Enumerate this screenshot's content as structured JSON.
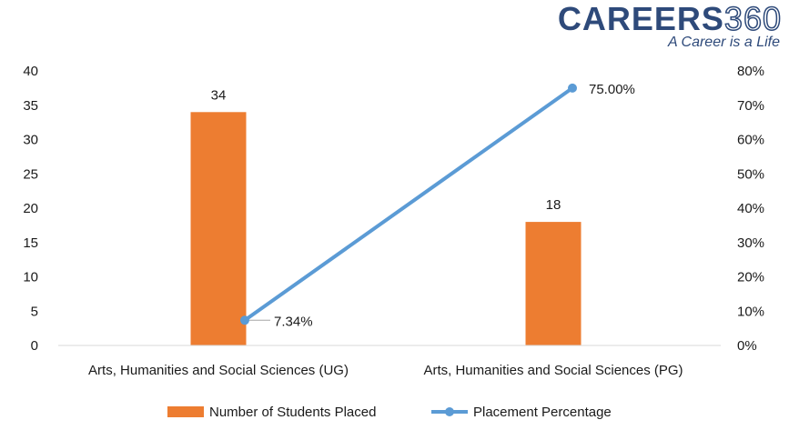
{
  "logo": {
    "brand": "CAREERS",
    "number": "360",
    "tagline": "A Career is a Life"
  },
  "colors": {
    "bar": "#ed7d31",
    "line": "#5b9bd5",
    "axis": "#d9d9d9",
    "text": "#1a1a1a"
  },
  "chart_data": {
    "type": "bar",
    "categories": [
      "Arts, Humanities and Social Sciences (UG)",
      "Arts, Humanities and Social Sciences (PG)"
    ],
    "series": [
      {
        "name": "Number of Students Placed",
        "type": "bar",
        "axis": "left",
        "values": [
          34,
          18
        ],
        "labels": [
          "34",
          "18"
        ]
      },
      {
        "name": "Placement Percentage",
        "type": "line",
        "axis": "right",
        "values": [
          7.34,
          75.0
        ],
        "labels": [
          "7.34%",
          "75.00%"
        ]
      }
    ],
    "y_left": {
      "min": 0,
      "max": 40,
      "step": 5,
      "ticks": [
        "0",
        "5",
        "10",
        "15",
        "20",
        "25",
        "30",
        "35",
        "40"
      ]
    },
    "y_right": {
      "min": 0,
      "max": 80,
      "step": 10,
      "ticks": [
        "0%",
        "10%",
        "20%",
        "30%",
        "40%",
        "50%",
        "60%",
        "70%",
        "80%"
      ]
    },
    "grid": false,
    "legend": "bottom"
  }
}
